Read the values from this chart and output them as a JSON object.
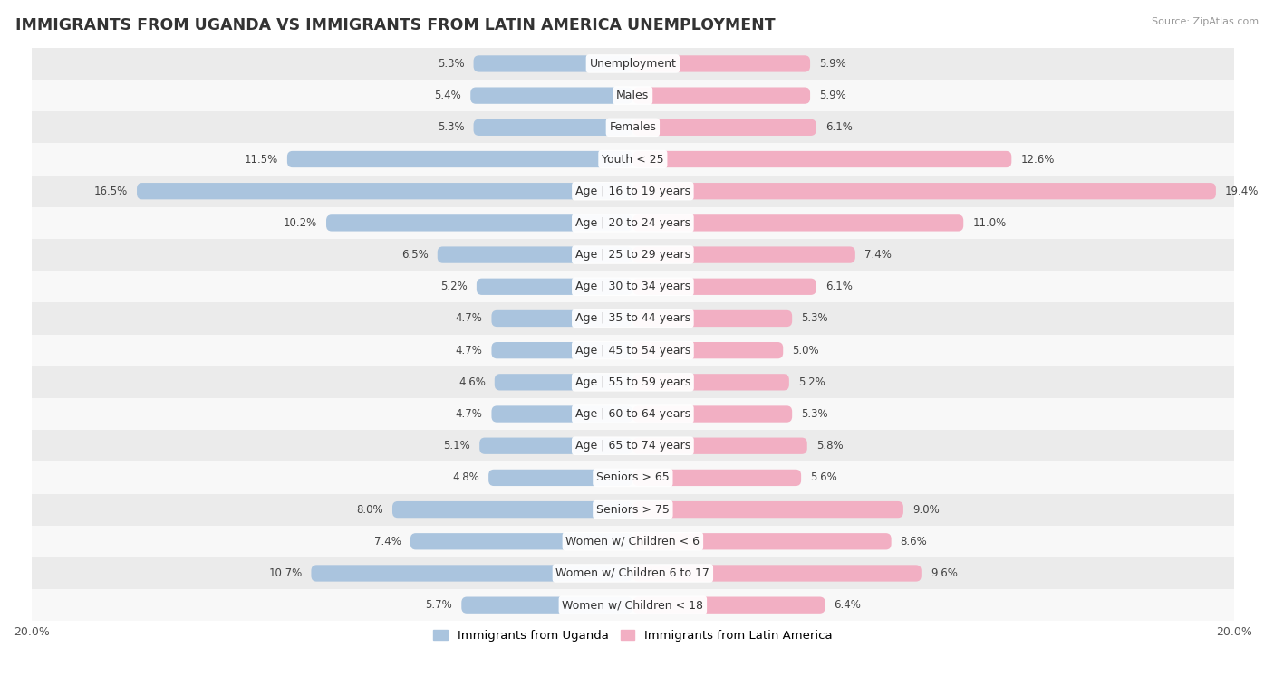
{
  "title": "IMMIGRANTS FROM UGANDA VS IMMIGRANTS FROM LATIN AMERICA UNEMPLOYMENT",
  "source": "Source: ZipAtlas.com",
  "categories": [
    "Unemployment",
    "Males",
    "Females",
    "Youth < 25",
    "Age | 16 to 19 years",
    "Age | 20 to 24 years",
    "Age | 25 to 29 years",
    "Age | 30 to 34 years",
    "Age | 35 to 44 years",
    "Age | 45 to 54 years",
    "Age | 55 to 59 years",
    "Age | 60 to 64 years",
    "Age | 65 to 74 years",
    "Seniors > 65",
    "Seniors > 75",
    "Women w/ Children < 6",
    "Women w/ Children 6 to 17",
    "Women w/ Children < 18"
  ],
  "uganda_values": [
    5.3,
    5.4,
    5.3,
    11.5,
    16.5,
    10.2,
    6.5,
    5.2,
    4.7,
    4.7,
    4.6,
    4.7,
    5.1,
    4.8,
    8.0,
    7.4,
    10.7,
    5.7
  ],
  "latin_values": [
    5.9,
    5.9,
    6.1,
    12.6,
    19.4,
    11.0,
    7.4,
    6.1,
    5.3,
    5.0,
    5.2,
    5.3,
    5.8,
    5.6,
    9.0,
    8.6,
    9.6,
    6.4
  ],
  "uganda_color": "#aac4de",
  "latin_color": "#f2afc3",
  "xlim": 20.0,
  "bar_height": 0.52,
  "row_colors": [
    "#ebebeb",
    "#f8f8f8"
  ],
  "title_fontsize": 12.5,
  "label_fontsize": 9,
  "value_fontsize": 8.5,
  "legend_label_uganda": "Immigrants from Uganda",
  "legend_label_latin": "Immigrants from Latin America"
}
